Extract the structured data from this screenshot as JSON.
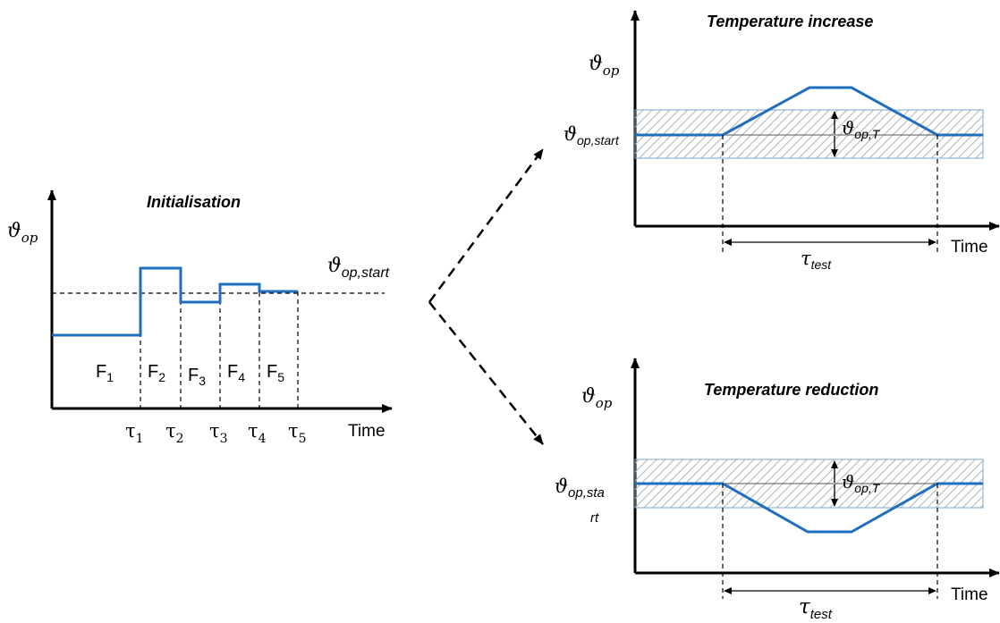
{
  "initialisation": {
    "title": "Initialisation",
    "y_label": "ϑ",
    "y_label_sub": "op",
    "ref_label": "ϑ",
    "ref_label_sub": "op,start",
    "x_label": "Time",
    "phases": [
      {
        "label": "F",
        "sub": "1"
      },
      {
        "label": "F",
        "sub": "2"
      },
      {
        "label": "F",
        "sub": "3"
      },
      {
        "label": "F",
        "sub": "4"
      },
      {
        "label": "F",
        "sub": "5"
      }
    ],
    "times": [
      {
        "label": "τ",
        "sub": "1"
      },
      {
        "label": "τ",
        "sub": "2"
      },
      {
        "label": "τ",
        "sub": "3"
      },
      {
        "label": "τ",
        "sub": "4"
      },
      {
        "label": "τ",
        "sub": "5"
      }
    ]
  },
  "increase": {
    "title": "Temperature increase",
    "y_label": "ϑ",
    "y_label_sub": "op",
    "start_label": "ϑ",
    "start_label_sub": "op,start",
    "band_label": "ϑ",
    "band_label_sub": "op,T",
    "x_label": "Time",
    "duration_label": "τ",
    "duration_label_sub": "test"
  },
  "reduction": {
    "title": "Temperature reduction",
    "y_label": "ϑ",
    "y_label_sub": "op",
    "start_label_line1": "ϑ",
    "start_label_sub": "op,sta",
    "start_label_line2": "rt",
    "band_label": "ϑ",
    "band_label_sub": "op,T",
    "x_label": "Time",
    "duration_label": "τ",
    "duration_label_sub": "test"
  },
  "colors": {
    "curve": "#1f6fbf",
    "band_border": "#7aa6cc",
    "hatch": "#b8b8b8",
    "axis": "#000000"
  }
}
